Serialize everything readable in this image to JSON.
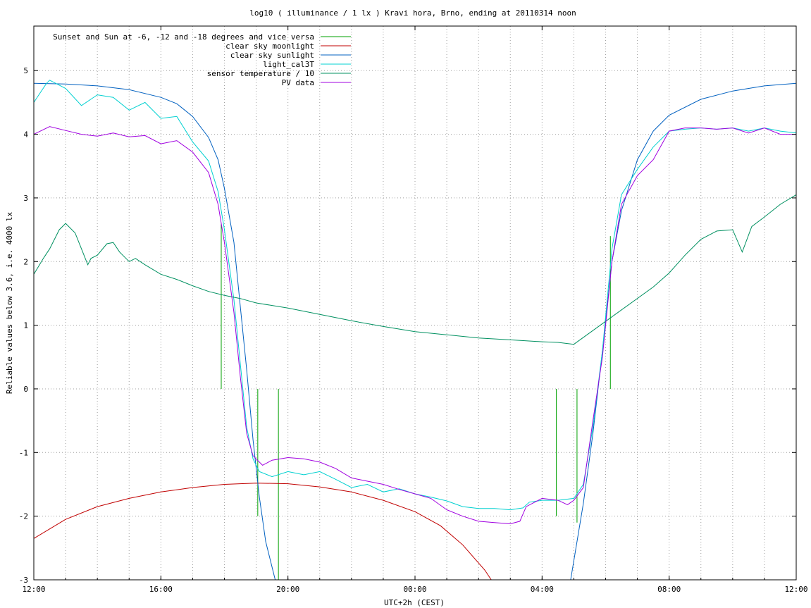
{
  "chart_data": {
    "type": "line",
    "title": "log10 ( illuminance / 1 lx ) Kravi hora, Brno, ending at 20110314 noon",
    "xlabel": "UTC+2h (CEST)",
    "ylabel": "Reliable values below 3.6, i.e. 4000 lx",
    "xlim": [
      0,
      24
    ],
    "ylim": [
      -3,
      5.7
    ],
    "x_ticks": [
      {
        "v": 0,
        "label": "12:00"
      },
      {
        "v": 4,
        "label": "16:00"
      },
      {
        "v": 8,
        "label": "20:00"
      },
      {
        "v": 12,
        "label": "00:00"
      },
      {
        "v": 16,
        "label": "04:00"
      },
      {
        "v": 20,
        "label": "08:00"
      },
      {
        "v": 24,
        "label": "12:00"
      }
    ],
    "y_ticks": [
      {
        "v": -3,
        "label": "-3"
      },
      {
        "v": -2,
        "label": "-2"
      },
      {
        "v": -1,
        "label": "-1"
      },
      {
        "v": 0,
        "label": "0"
      },
      {
        "v": 1,
        "label": "1"
      },
      {
        "v": 2,
        "label": "2"
      },
      {
        "v": 3,
        "label": "3"
      },
      {
        "v": 4,
        "label": "4"
      },
      {
        "v": 5,
        "label": "5"
      }
    ],
    "grid": true,
    "grid_x_step_hours": 1,
    "legend_position": "top-left",
    "series": [
      {
        "name": "Sunset and Sun at -6, -12 and -18 degrees and vice versa",
        "color": "#00a000",
        "style": "impulses",
        "points": [
          [
            5.9,
            2.6
          ],
          [
            7.05,
            -2.0
          ],
          [
            7.7,
            -3.0
          ],
          [
            16.45,
            -2.0
          ],
          [
            17.1,
            -2.1
          ],
          [
            18.15,
            2.4
          ]
        ]
      },
      {
        "name": "clear sky moonlight",
        "color": "#c00000",
        "points": [
          [
            0,
            -2.35
          ],
          [
            1,
            -2.05
          ],
          [
            2,
            -1.85
          ],
          [
            3,
            -1.72
          ],
          [
            4,
            -1.62
          ],
          [
            5,
            -1.55
          ],
          [
            6,
            -1.5
          ],
          [
            7,
            -1.48
          ],
          [
            8,
            -1.49
          ],
          [
            9,
            -1.54
          ],
          [
            10,
            -1.62
          ],
          [
            11,
            -1.75
          ],
          [
            12,
            -1.93
          ],
          [
            12.8,
            -2.15
          ],
          [
            13.5,
            -2.45
          ],
          [
            14.2,
            -2.85
          ],
          [
            14.4,
            -3.0
          ]
        ]
      },
      {
        "name": "clear sky sunlight",
        "color": "#0060c0",
        "points": [
          [
            0,
            4.8
          ],
          [
            1,
            4.79
          ],
          [
            2,
            4.76
          ],
          [
            3,
            4.7
          ],
          [
            4,
            4.58
          ],
          [
            4.5,
            4.48
          ],
          [
            5,
            4.28
          ],
          [
            5.5,
            3.95
          ],
          [
            5.8,
            3.6
          ],
          [
            6.0,
            3.15
          ],
          [
            6.3,
            2.3
          ],
          [
            6.5,
            1.3
          ],
          [
            6.7,
            0.3
          ],
          [
            6.9,
            -0.8
          ],
          [
            7.1,
            -1.7
          ],
          [
            7.3,
            -2.4
          ],
          [
            7.6,
            -3.0
          ],
          [
            16.9,
            -3.0
          ],
          [
            17.3,
            -1.8
          ],
          [
            17.6,
            -0.7
          ],
          [
            17.9,
            0.6
          ],
          [
            18.2,
            2.0
          ],
          [
            18.5,
            2.8
          ],
          [
            19,
            3.6
          ],
          [
            19.5,
            4.05
          ],
          [
            20,
            4.3
          ],
          [
            21,
            4.55
          ],
          [
            22,
            4.68
          ],
          [
            23,
            4.76
          ],
          [
            24,
            4.8
          ]
        ]
      },
      {
        "name": "light_cal3T",
        "color": "#00d0d0",
        "points": [
          [
            0,
            4.5
          ],
          [
            0.4,
            4.8
          ],
          [
            0.5,
            4.85
          ],
          [
            1,
            4.72
          ],
          [
            1.5,
            4.45
          ],
          [
            2,
            4.62
          ],
          [
            2.5,
            4.58
          ],
          [
            3,
            4.38
          ],
          [
            3.5,
            4.5
          ],
          [
            4,
            4.25
          ],
          [
            4.5,
            4.28
          ],
          [
            5,
            3.88
          ],
          [
            5.5,
            3.58
          ],
          [
            5.8,
            3.1
          ],
          [
            6.0,
            2.5
          ],
          [
            6.3,
            1.4
          ],
          [
            6.5,
            0.4
          ],
          [
            6.7,
            -0.6
          ],
          [
            6.9,
            -1.1
          ],
          [
            7.1,
            -1.3
          ],
          [
            7.5,
            -1.38
          ],
          [
            8,
            -1.3
          ],
          [
            8.5,
            -1.35
          ],
          [
            9,
            -1.3
          ],
          [
            9.5,
            -1.42
          ],
          [
            10,
            -1.55
          ],
          [
            10.5,
            -1.5
          ],
          [
            11,
            -1.62
          ],
          [
            11.5,
            -1.57
          ],
          [
            12,
            -1.65
          ],
          [
            12.5,
            -1.7
          ],
          [
            13,
            -1.76
          ],
          [
            13.5,
            -1.85
          ],
          [
            14,
            -1.88
          ],
          [
            14.5,
            -1.88
          ],
          [
            15,
            -1.9
          ],
          [
            15.4,
            -1.87
          ],
          [
            15.6,
            -1.78
          ],
          [
            16,
            -1.75
          ],
          [
            16.5,
            -1.75
          ],
          [
            17,
            -1.72
          ],
          [
            17.3,
            -1.5
          ],
          [
            17.6,
            -0.6
          ],
          [
            17.9,
            0.6
          ],
          [
            18.2,
            2.2
          ],
          [
            18.5,
            3.05
          ],
          [
            19,
            3.45
          ],
          [
            19.5,
            3.8
          ],
          [
            20,
            4.05
          ],
          [
            20.5,
            4.08
          ],
          [
            21,
            4.1
          ],
          [
            21.5,
            4.08
          ],
          [
            22,
            4.1
          ],
          [
            22.5,
            4.05
          ],
          [
            23,
            4.1
          ],
          [
            23.5,
            4.05
          ],
          [
            24,
            4.02
          ]
        ]
      },
      {
        "name": "sensor temperature / 10",
        "color": "#009060",
        "points": [
          [
            0,
            1.8
          ],
          [
            0.3,
            2.05
          ],
          [
            0.5,
            2.2
          ],
          [
            0.8,
            2.5
          ],
          [
            1,
            2.6
          ],
          [
            1.3,
            2.45
          ],
          [
            1.5,
            2.2
          ],
          [
            1.7,
            1.95
          ],
          [
            1.8,
            2.05
          ],
          [
            2,
            2.1
          ],
          [
            2.3,
            2.28
          ],
          [
            2.5,
            2.3
          ],
          [
            2.7,
            2.15
          ],
          [
            3,
            2.0
          ],
          [
            3.2,
            2.05
          ],
          [
            3.5,
            1.95
          ],
          [
            4,
            1.8
          ],
          [
            4.5,
            1.72
          ],
          [
            5,
            1.62
          ],
          [
            5.5,
            1.53
          ],
          [
            6,
            1.47
          ],
          [
            6.5,
            1.42
          ],
          [
            7,
            1.35
          ],
          [
            8,
            1.27
          ],
          [
            9,
            1.17
          ],
          [
            10,
            1.07
          ],
          [
            11,
            0.98
          ],
          [
            12,
            0.9
          ],
          [
            13,
            0.85
          ],
          [
            14,
            0.8
          ],
          [
            15,
            0.77
          ],
          [
            16,
            0.74
          ],
          [
            16.5,
            0.73
          ],
          [
            17,
            0.7
          ],
          [
            19.5,
            1.6
          ],
          [
            20,
            1.82
          ],
          [
            20.5,
            2.1
          ],
          [
            21,
            2.35
          ],
          [
            21.5,
            2.48
          ],
          [
            22,
            2.5
          ],
          [
            22.3,
            2.15
          ],
          [
            22.6,
            2.55
          ],
          [
            23,
            2.7
          ],
          [
            23.5,
            2.9
          ],
          [
            24,
            3.05
          ]
        ]
      },
      {
        "name": "PV data",
        "color": "#a000e0",
        "points": [
          [
            0,
            4.0
          ],
          [
            0.5,
            4.12
          ],
          [
            1,
            4.06
          ],
          [
            1.5,
            4.0
          ],
          [
            2,
            3.97
          ],
          [
            2.5,
            4.02
          ],
          [
            3,
            3.96
          ],
          [
            3.5,
            3.98
          ],
          [
            4,
            3.85
          ],
          [
            4.5,
            3.9
          ],
          [
            5,
            3.72
          ],
          [
            5.5,
            3.4
          ],
          [
            5.8,
            2.9
          ],
          [
            6.0,
            2.3
          ],
          [
            6.3,
            1.2
          ],
          [
            6.5,
            0.2
          ],
          [
            6.7,
            -0.7
          ],
          [
            6.9,
            -1.05
          ],
          [
            7.2,
            -1.2
          ],
          [
            7.5,
            -1.12
          ],
          [
            8,
            -1.08
          ],
          [
            8.5,
            -1.1
          ],
          [
            9,
            -1.15
          ],
          [
            9.5,
            -1.25
          ],
          [
            10,
            -1.4
          ],
          [
            10.5,
            -1.45
          ],
          [
            11,
            -1.5
          ],
          [
            11.5,
            -1.58
          ],
          [
            12,
            -1.65
          ],
          [
            12.5,
            -1.72
          ],
          [
            13,
            -1.9
          ],
          [
            13.5,
            -2.0
          ],
          [
            14,
            -2.08
          ],
          [
            14.5,
            -2.1
          ],
          [
            15,
            -2.12
          ],
          [
            15.3,
            -2.08
          ],
          [
            15.5,
            -1.85
          ],
          [
            16,
            -1.72
          ],
          [
            16.5,
            -1.75
          ],
          [
            16.8,
            -1.82
          ],
          [
            17,
            -1.75
          ],
          [
            17.3,
            -1.55
          ],
          [
            17.6,
            -0.5
          ],
          [
            17.9,
            0.5
          ],
          [
            18.2,
            2.0
          ],
          [
            18.5,
            2.9
          ],
          [
            19,
            3.35
          ],
          [
            19.5,
            3.6
          ],
          [
            20,
            4.05
          ],
          [
            20.5,
            4.1
          ],
          [
            21,
            4.1
          ],
          [
            21.5,
            4.08
          ],
          [
            22,
            4.1
          ],
          [
            22.5,
            4.02
          ],
          [
            23,
            4.1
          ],
          [
            23.5,
            4.0
          ],
          [
            24,
            4.0
          ]
        ]
      }
    ]
  }
}
